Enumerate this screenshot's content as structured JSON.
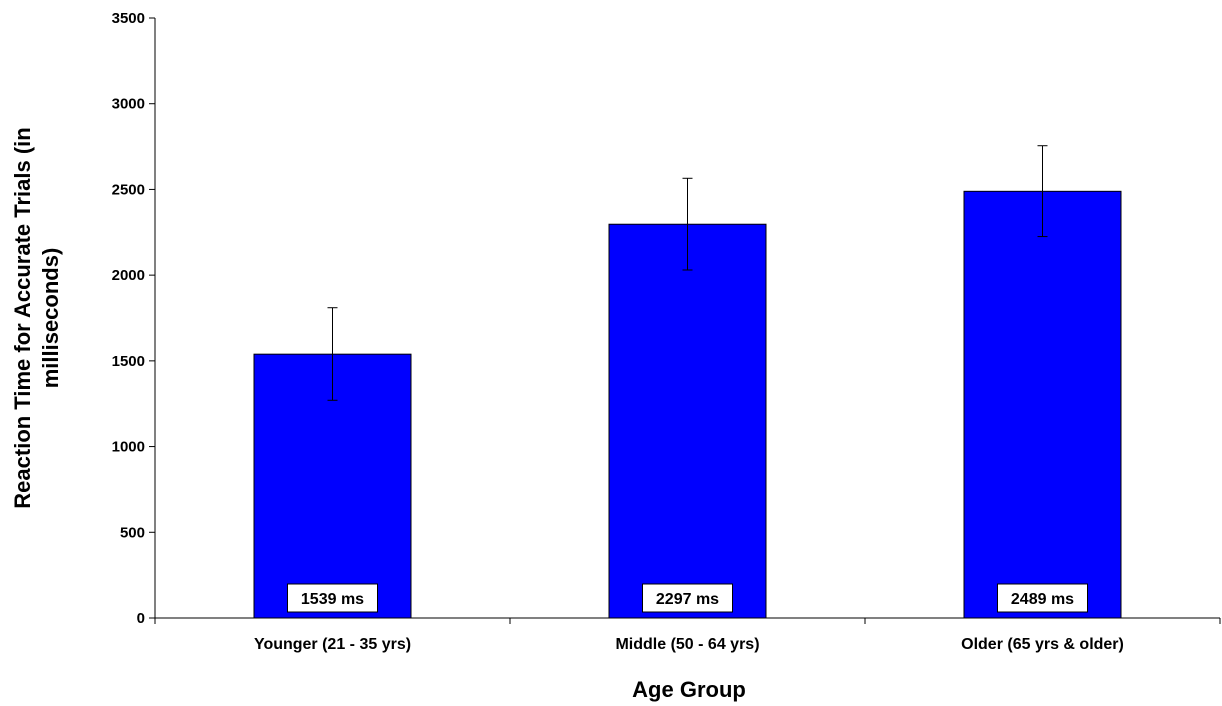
{
  "chart_data": {
    "type": "bar",
    "categories": [
      "Younger (21 - 35 yrs)",
      "Middle (50 - 64 yrs)",
      "Older (65 yrs & older)"
    ],
    "values": [
      1539,
      2297,
      2489
    ],
    "error_bars": [
      {
        "low": 1270,
        "high": 1810
      },
      {
        "low": 2030,
        "high": 2565
      },
      {
        "low": 2225,
        "high": 2755
      }
    ],
    "data_labels": [
      "1539 ms",
      "2297 ms",
      "2489 ms"
    ],
    "xlabel": "Age Group",
    "ylabel": "Reaction Time for Accurate Trials (in milliseconds)",
    "ylabel_lines": [
      "Reaction Time for Accurate Trials (in",
      "milliseconds)"
    ],
    "ylim": [
      0,
      3500
    ],
    "yticks": [
      0,
      500,
      1000,
      1500,
      2000,
      2500,
      3000,
      3500
    ],
    "bar_color": "#0000FF",
    "grid": false,
    "legend": "none"
  }
}
